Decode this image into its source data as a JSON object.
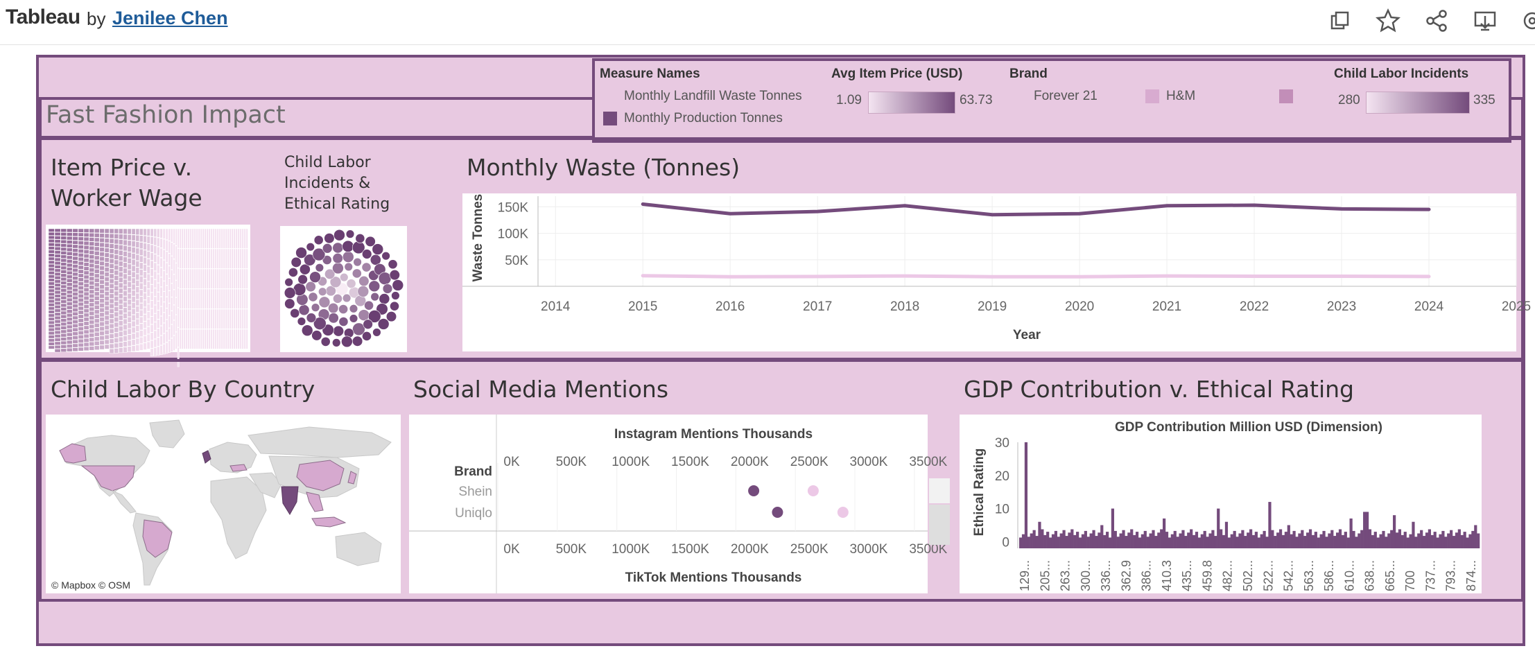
{
  "header": {
    "app_name": "Tableau",
    "by": "by",
    "author": "Jenilee Chen",
    "icons": [
      "duplicate-icon",
      "star-icon",
      "share-icon",
      "download-icon",
      "settings-icon"
    ]
  },
  "dashboard": {
    "title": "Fast Fashion Impact",
    "colors": {
      "background": "#e8c9e1",
      "border": "#744b7c",
      "dark": "#744b7c",
      "light": "#efd2ea"
    }
  },
  "legend": {
    "measure_names": {
      "title": "Measure Names",
      "items": [
        "Monthly Landfill Waste Tonnes",
        "Monthly Production Tonnes"
      ]
    },
    "avg_price": {
      "title": "Avg Item Price (USD)",
      "min": "1.09",
      "max": "63.73"
    },
    "brand": {
      "title": "Brand",
      "items": [
        "Forever 21",
        "H&M"
      ]
    },
    "child_labor": {
      "title": "Child Labor Incidents",
      "min": "280",
      "max": "335"
    }
  },
  "panels": {
    "item_price": {
      "title_line1": "Item Price v.",
      "title_line2": "Worker Wage"
    },
    "child_labor_rating": {
      "title_line1": "Child Labor",
      "title_line2": "Incidents &",
      "title_line3": "Ethical Rating"
    },
    "monthly_waste": {
      "title": "Monthly Waste (Tonnes)"
    },
    "child_labor_country": {
      "title": "Child Labor By Country",
      "attribution": "© Mapbox  © OSM"
    },
    "social_media": {
      "title": "Social Media Mentions"
    },
    "gdp": {
      "title": "GDP Contribution v. Ethical Rating"
    }
  },
  "chart_data": [
    {
      "type": "line",
      "title": "Monthly Waste (Tonnes)",
      "xlabel": "Year",
      "ylabel": "Waste Tonnes",
      "x_ticks": [
        "2014",
        "2015",
        "2016",
        "2017",
        "2018",
        "2019",
        "2020",
        "2021",
        "2022",
        "2023",
        "2024",
        "2025"
      ],
      "y_ticks": [
        "150K",
        "100K",
        "50K"
      ],
      "ylim": [
        0,
        170000
      ],
      "xlim": [
        2013.8,
        2025.0
      ],
      "x": [
        2015,
        2016,
        2017,
        2018,
        2019,
        2020,
        2021,
        2022,
        2023,
        2024
      ],
      "series": [
        {
          "name": "Monthly Production Tonnes",
          "values": [
            155000,
            137000,
            141000,
            152000,
            135000,
            137000,
            152000,
            153000,
            146000,
            145000
          ]
        },
        {
          "name": "Monthly Landfill Waste Tonnes",
          "values": [
            20000,
            18000,
            18500,
            19500,
            18000,
            18000,
            19500,
            19000,
            19000,
            18500
          ]
        }
      ],
      "grid": true
    },
    {
      "type": "scatter",
      "title": "Social Media Mentions",
      "xlabel_top": "Instagram Mentions Thousands",
      "xlabel_bottom": "TikTok Mentions Thousands",
      "row_header": "Brand",
      "categories": [
        "Shein",
        "Uniqlo"
      ],
      "x_ticks": [
        "0K",
        "500K",
        "1000K",
        "1500K",
        "2000K",
        "2500K",
        "3000K",
        "3500K"
      ],
      "xlim": [
        0,
        3600
      ],
      "points": [
        {
          "brand": "Shein",
          "x": 2150,
          "shade": "dark"
        },
        {
          "brand": "Shein",
          "x": 2650,
          "shade": "light"
        },
        {
          "brand": "Uniqlo",
          "x": 2350,
          "shade": "dark"
        },
        {
          "brand": "Uniqlo",
          "x": 2900,
          "shade": "light"
        }
      ]
    },
    {
      "type": "bar",
      "title": "GDP Contribution v. Ethical Rating",
      "xlabel": "GDP Contribution Million USD (Dimension)",
      "ylabel": "Ethical Rating",
      "y_ticks": [
        "30",
        "20",
        "10",
        "0"
      ],
      "ylim": [
        -2,
        30
      ],
      "x_tick_labels": [
        "129...",
        "205...",
        "263...",
        "300...",
        "336...",
        "362.9",
        "386...",
        "410.3",
        "435...",
        "459.8",
        "482...",
        "502...",
        "522...",
        "542...",
        "563...",
        "586...",
        "610...",
        "638...",
        "665...",
        "700",
        "737...",
        "793...",
        "874..."
      ],
      "baseline": 2.5,
      "spikes": [
        {
          "pos": 0.01,
          "value": 30
        },
        {
          "pos": 0.2,
          "value": 10
        },
        {
          "pos": 0.43,
          "value": 10
        },
        {
          "pos": 0.54,
          "value": 12
        },
        {
          "pos": 0.75,
          "value": 9
        },
        {
          "pos": 0.81,
          "value": 8
        }
      ]
    }
  ]
}
